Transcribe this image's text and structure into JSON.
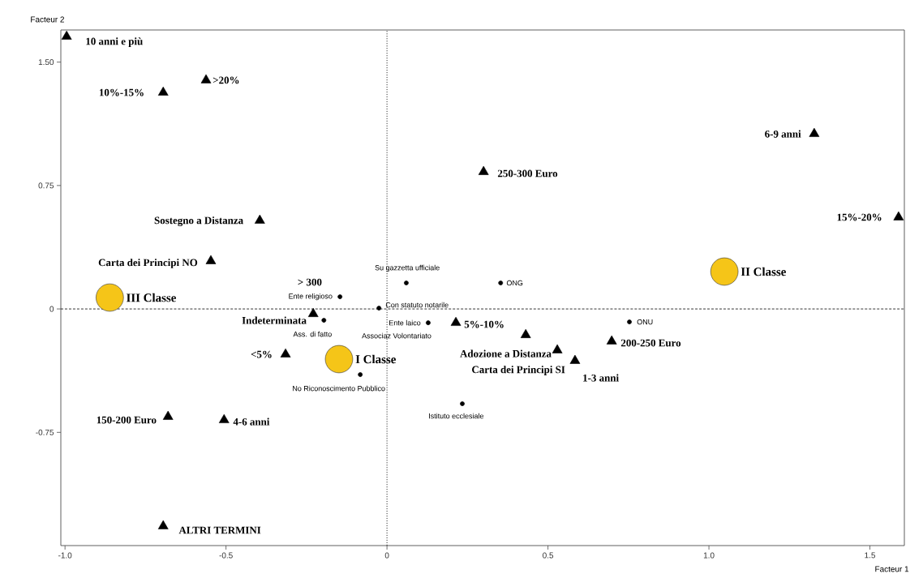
{
  "chart_data": {
    "type": "scatter",
    "xlabel": "Facteur 1",
    "ylabel": "Facteur 2",
    "xlim": [
      -1.013,
      1.607
    ],
    "ylim": [
      -1.438,
      1.695
    ],
    "xticks": [
      {
        "value": -1.0,
        "label": "-1.0"
      },
      {
        "value": -0.5,
        "label": "-0.5"
      },
      {
        "value": 0,
        "label": "0"
      },
      {
        "value": 0.5,
        "label": "0.5"
      },
      {
        "value": 1.0,
        "label": "1.0"
      },
      {
        "value": 1.5,
        "label": "1.5"
      }
    ],
    "yticks": [
      {
        "value": 1.5,
        "label": "1.50"
      },
      {
        "value": 0.75,
        "label": "0.75"
      },
      {
        "value": 0,
        "label": "0"
      },
      {
        "value": -0.75,
        "label": "-0.75"
      }
    ],
    "grid": false,
    "ref_lines": [
      {
        "axis": "x",
        "value": 0,
        "color": "#000000",
        "line_style": "dotted"
      },
      {
        "axis": "y",
        "value": 0,
        "color": "#000000",
        "line_style": "dashed"
      }
    ],
    "series": [
      {
        "marker": "triangle",
        "color": "#000000",
        "x": [
          -0.995,
          -0.562,
          -0.695,
          1.327,
          0.3,
          1.589,
          -0.395,
          -0.547,
          -0.229,
          0.214,
          0.431,
          0.529,
          0.584,
          0.698,
          -0.315,
          -0.68,
          -0.506,
          -0.695
        ],
        "values": [
          1.655,
          1.39,
          1.315,
          1.064,
          0.833,
          0.557,
          0.537,
          0.291,
          -0.03,
          -0.084,
          -0.158,
          -0.251,
          -0.315,
          -0.197,
          -0.276,
          -0.655,
          -0.675,
          -1.32
        ]
      },
      {
        "marker": "circle",
        "color": "#000000",
        "x": [
          0.06,
          0.353,
          -0.146,
          -0.025,
          -0.196,
          0.128,
          0.753,
          -0.083,
          0.234
        ],
        "values": [
          0.158,
          0.158,
          0.074,
          0.005,
          -0.069,
          -0.084,
          -0.079,
          -0.399,
          -0.576
        ]
      },
      {
        "marker": "circle",
        "color": "#f5c518",
        "x": [
          -0.861,
          -0.149,
          1.048
        ],
        "values": [
          0.069,
          -0.305,
          0.227
        ]
      }
    ],
    "annotations": [
      {
        "text": "10 anni e più",
        "x": -0.995,
        "y": 1.655
      },
      {
        "text": ">20%",
        "x": -0.562,
        "y": 1.39
      },
      {
        "text": "10%-15%",
        "x": -0.695,
        "y": 1.315
      },
      {
        "text": "6-9 anni",
        "x": 1.327,
        "y": 1.064
      },
      {
        "text": "250-300 Euro",
        "x": 0.3,
        "y": 0.833
      },
      {
        "text": "15%-20%",
        "x": 1.589,
        "y": 0.557
      },
      {
        "text": "Sostegno a Distanza",
        "x": -0.395,
        "y": 0.537
      },
      {
        "text": "Carta dei Principi NO",
        "x": -0.547,
        "y": 0.291
      },
      {
        "text": "> 300",
        "x": -0.146,
        "y": 0.074
      },
      {
        "text": "Indeterminata",
        "x": -0.229,
        "y": -0.03
      },
      {
        "text": "5%-10%",
        "x": 0.214,
        "y": -0.084
      },
      {
        "text": "Adozione a Distanza",
        "x": 0.431,
        "y": -0.158
      },
      {
        "text": "Carta dei Principi SI",
        "x": 0.529,
        "y": -0.251
      },
      {
        "text": "1-3 anni",
        "x": 0.584,
        "y": -0.315
      },
      {
        "text": "200-250 Euro",
        "x": 0.698,
        "y": -0.197
      },
      {
        "text": "<5%",
        "x": -0.315,
        "y": -0.276
      },
      {
        "text": "150-200 Euro",
        "x": -0.68,
        "y": -0.655
      },
      {
        "text": "4-6 anni",
        "x": -0.506,
        "y": -0.675
      },
      {
        "text": "ALTRI TERMINI",
        "x": -0.695,
        "y": -1.32
      },
      {
        "text": "III Classe",
        "x": -0.861,
        "y": 0.069
      },
      {
        "text": "I Classe",
        "x": -0.149,
        "y": -0.305
      },
      {
        "text": "II Classe",
        "x": 1.048,
        "y": 0.227
      },
      {
        "text": "Su gazzetta ufficiale",
        "x": 0.06,
        "y": 0.158
      },
      {
        "text": "ONG",
        "x": 0.353,
        "y": 0.158
      },
      {
        "text": "Ente religioso",
        "x": -0.146,
        "y": 0.074
      },
      {
        "text": "Con statuto notarile",
        "x": -0.025,
        "y": 0.005
      },
      {
        "text": "Ass. di fatto",
        "x": -0.196,
        "y": -0.069
      },
      {
        "text": "Ente laico",
        "x": 0.128,
        "y": -0.084
      },
      {
        "text": "Associaz Volontariato",
        "x": 0.128,
        "y": -0.084
      },
      {
        "text": "ONU",
        "x": 0.753,
        "y": -0.079
      },
      {
        "text": "No Riconoscimento Pubblico",
        "x": -0.083,
        "y": -0.399
      },
      {
        "text": "Istituto ecclesiale",
        "x": 0.234,
        "y": -0.576
      }
    ]
  }
}
